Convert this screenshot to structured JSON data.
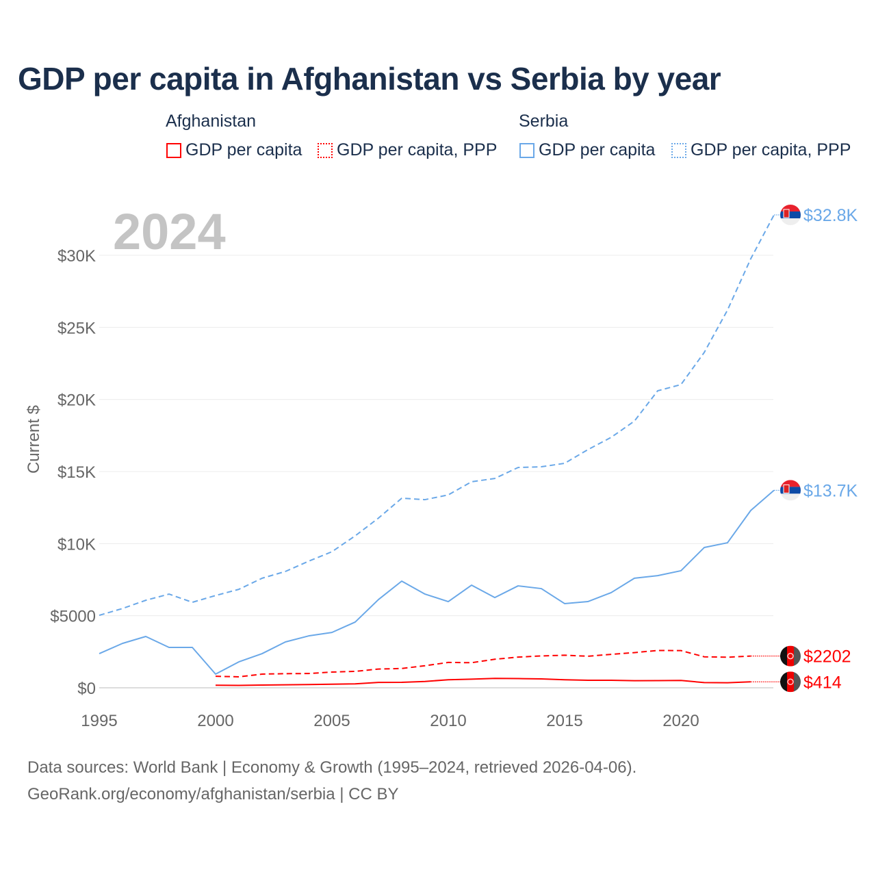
{
  "title": "GDP per capita in Afghanistan vs Serbia by year",
  "legend": {
    "groups": [
      {
        "name": "Afghanistan",
        "items": [
          "GDP per capita",
          "GDP per capita, PPP"
        ],
        "color": "#ff0000"
      },
      {
        "name": "Serbia",
        "items": [
          "GDP per capita",
          "GDP per capita, PPP"
        ],
        "color": "#6aa8e8"
      }
    ]
  },
  "year_label": "2024",
  "footer": {
    "line1": "Data sources: World Bank | Economy & Growth (1995–2024, retrieved 2026-04-06).",
    "line2": "GeoRank.org/economy/afghanistan/serbia | CC BY"
  },
  "chart_data": {
    "type": "line",
    "title": "GDP per capita in Afghanistan vs Serbia by year",
    "xlabel": "",
    "ylabel": "Current $",
    "xlim": [
      1995,
      2024
    ],
    "ylim": [
      0,
      33000
    ],
    "x_ticks": [
      1995,
      2000,
      2005,
      2010,
      2015,
      2020
    ],
    "x_tick_labels": [
      "1995",
      "2000",
      "2005",
      "2010",
      "2015",
      "2020"
    ],
    "y_ticks": [
      0,
      5000,
      10000,
      15000,
      20000,
      25000,
      30000
    ],
    "y_tick_labels": [
      "$0",
      "$5000",
      "$10K",
      "$15K",
      "$20K",
      "$25K",
      "$30K"
    ],
    "grid": true,
    "series": [
      {
        "name": "Serbia GDP per capita, PPP",
        "color": "#6aa8e8",
        "dash": "dashed",
        "end_label": "$32.8K",
        "flag": "serbia",
        "x": [
          1995,
          1996,
          1997,
          1998,
          1999,
          2000,
          2001,
          2002,
          2003,
          2004,
          2005,
          2006,
          2007,
          2008,
          2009,
          2010,
          2011,
          2012,
          2013,
          2014,
          2015,
          2016,
          2017,
          2018,
          2019,
          2020,
          2021,
          2022,
          2023,
          2024
        ],
        "values": [
          5030,
          5500,
          6070,
          6500,
          5930,
          6400,
          6830,
          7600,
          8070,
          8780,
          9440,
          10540,
          11770,
          13150,
          13050,
          13380,
          14290,
          14520,
          15280,
          15330,
          15570,
          16520,
          17370,
          18500,
          20600,
          21030,
          23260,
          26200,
          29760,
          32800
        ]
      },
      {
        "name": "Serbia GDP per capita",
        "color": "#6aa8e8",
        "dash": "solid",
        "end_label": "$13.7K",
        "flag": "serbia",
        "x": [
          1995,
          1996,
          1997,
          1998,
          1999,
          2000,
          2001,
          2002,
          2003,
          2004,
          2005,
          2006,
          2007,
          2008,
          2009,
          2010,
          2011,
          2012,
          2013,
          2014,
          2015,
          2016,
          2017,
          2018,
          2019,
          2020,
          2021,
          2022,
          2023,
          2024
        ],
        "values": [
          2370,
          3080,
          3560,
          2800,
          2800,
          950,
          1800,
          2370,
          3180,
          3600,
          3840,
          4560,
          6120,
          7400,
          6500,
          5980,
          7120,
          6260,
          7070,
          6880,
          5840,
          5980,
          6600,
          7600,
          7780,
          8120,
          9730,
          10060,
          12300,
          13700
        ]
      },
      {
        "name": "Afghanistan GDP per capita, PPP",
        "color": "#ff0000",
        "dash": "dashed",
        "end_label": "$2202",
        "flag": "afghanistan",
        "x": [
          2000,
          2001,
          2002,
          2003,
          2004,
          2005,
          2006,
          2007,
          2008,
          2009,
          2010,
          2011,
          2012,
          2013,
          2014,
          2015,
          2016,
          2017,
          2018,
          2019,
          2020,
          2021,
          2022,
          2023
        ],
        "values": [
          800,
          760,
          950,
          980,
          990,
          1090,
          1140,
          1300,
          1340,
          1530,
          1760,
          1740,
          1980,
          2130,
          2210,
          2260,
          2190,
          2320,
          2440,
          2590,
          2580,
          2150,
          2120,
          2202
        ]
      },
      {
        "name": "Afghanistan GDP per capita",
        "color": "#ff0000",
        "dash": "solid",
        "end_label": "$414",
        "flag": "afghanistan",
        "x": [
          2000,
          2001,
          2002,
          2003,
          2004,
          2005,
          2006,
          2007,
          2008,
          2009,
          2010,
          2011,
          2012,
          2013,
          2014,
          2015,
          2016,
          2017,
          2018,
          2019,
          2020,
          2021,
          2022,
          2023
        ],
        "values": [
          180,
          165,
          190,
          210,
          225,
          250,
          275,
          375,
          380,
          440,
          560,
          600,
          650,
          640,
          620,
          560,
          520,
          520,
          490,
          500,
          510,
          360,
          350,
          414
        ]
      }
    ]
  }
}
